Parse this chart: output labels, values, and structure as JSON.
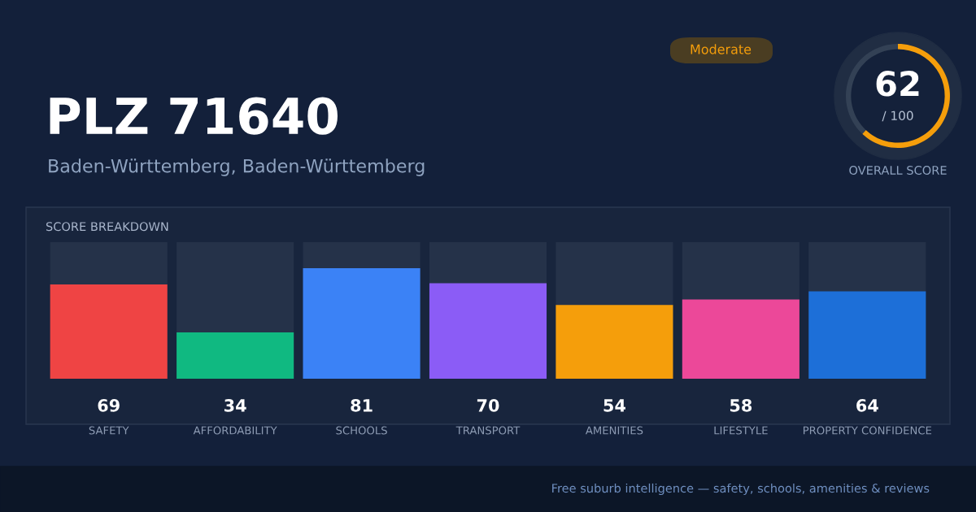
{
  "chart_data": [
    {
      "type": "bar",
      "title": "PLZ 71640",
      "subtitle": "Baden-Württemberg, Baden-Württemberg",
      "categories": [
        "SAFETY",
        "AFFORDABILITY",
        "SCHOOLS",
        "TRANSPORT",
        "AMENITIES",
        "LIFESTYLE",
        "PROPERTY CONFIDENCE"
      ],
      "values": [
        69,
        34,
        81,
        70,
        54,
        58,
        64
      ],
      "colors": [
        "#ef4444",
        "#10b981",
        "#3b82f6",
        "#8b5cf6",
        "#f59e0b",
        "#ec4899",
        "#1d6fd8"
      ],
      "ylim": [
        0,
        100
      ],
      "data_labels": true,
      "tick_labels": "x",
      "annotations": [
        "Moderate",
        "SCORE BREAKDOWN",
        "Free suburb intelligence — safety, schools, amenities & reviews"
      ]
    },
    {
      "type": "donut",
      "categories": [
        null,
        null
      ],
      "values": [
        62,
        38
      ],
      "colors": [
        "#f59e0b",
        "#334155"
      ],
      "xlabel": "OVERALL SCORE",
      "annotations": [
        "62",
        "/ 100"
      ]
    }
  ]
}
